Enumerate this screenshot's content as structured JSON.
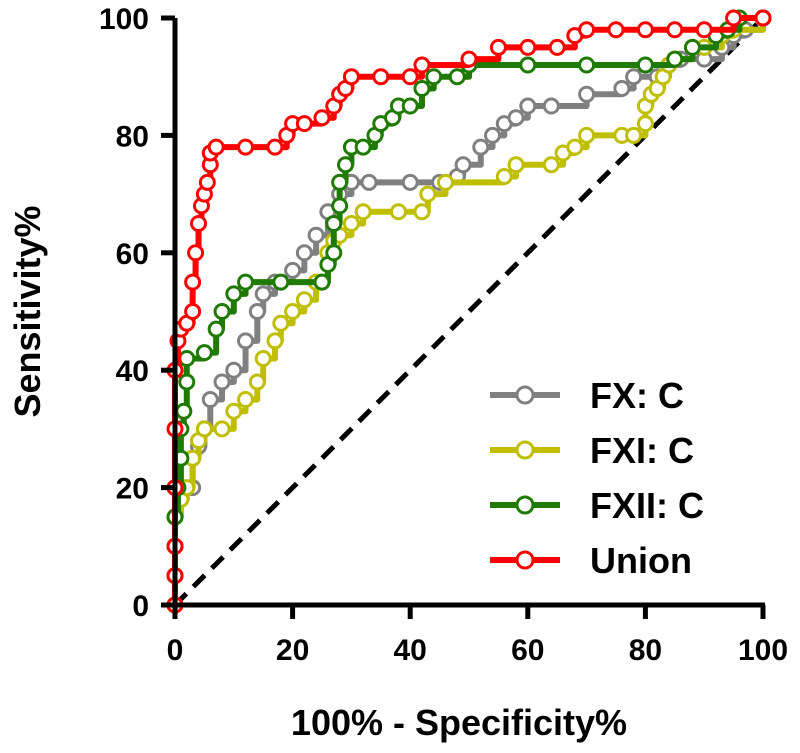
{
  "chart_data": {
    "type": "line",
    "xlabel": "100% - Specificity%",
    "ylabel": "Sensitivity%",
    "xlim": [
      0,
      100
    ],
    "ylim": [
      0,
      100
    ],
    "x_ticks": [
      "0",
      "20",
      "40",
      "60",
      "80",
      "100"
    ],
    "y_ticks": [
      "0",
      "20",
      "40",
      "60",
      "80",
      "100"
    ],
    "grid": false,
    "legend_position": "bottom-right",
    "reference_line": {
      "style": "dashed",
      "color": "#000000",
      "points": [
        [
          0,
          0
        ],
        [
          100,
          100
        ]
      ]
    },
    "series": [
      {
        "name": "FX: C",
        "color": "#808080",
        "points": [
          [
            0,
            0
          ],
          [
            0,
            5
          ],
          [
            0,
            10
          ],
          [
            0,
            15
          ],
          [
            0.5,
            20
          ],
          [
            3,
            20
          ],
          [
            3,
            25
          ],
          [
            4,
            27
          ],
          [
            5,
            30
          ],
          [
            6,
            35
          ],
          [
            8,
            38
          ],
          [
            10,
            40
          ],
          [
            12,
            45
          ],
          [
            14,
            50
          ],
          [
            15,
            53
          ],
          [
            17,
            55
          ],
          [
            20,
            57
          ],
          [
            22,
            60
          ],
          [
            24,
            63
          ],
          [
            26,
            67
          ],
          [
            28,
            70
          ],
          [
            30,
            72
          ],
          [
            33,
            72
          ],
          [
            40,
            72
          ],
          [
            45,
            72
          ],
          [
            48,
            73
          ],
          [
            49,
            75
          ],
          [
            52,
            78
          ],
          [
            54,
            80
          ],
          [
            56,
            82
          ],
          [
            58,
            83
          ],
          [
            60,
            85
          ],
          [
            64,
            85
          ],
          [
            70,
            87
          ],
          [
            76,
            88
          ],
          [
            78,
            90
          ],
          [
            82,
            90
          ],
          [
            84,
            92
          ],
          [
            86,
            93
          ],
          [
            90,
            93
          ],
          [
            93,
            95
          ],
          [
            95,
            97
          ],
          [
            97,
            98
          ],
          [
            100,
            100
          ]
        ]
      },
      {
        "name": "FXI: C",
        "color": "#BFBF00",
        "points": [
          [
            0,
            0
          ],
          [
            0,
            5
          ],
          [
            0,
            10
          ],
          [
            0,
            15
          ],
          [
            1,
            18
          ],
          [
            2,
            20
          ],
          [
            3,
            25
          ],
          [
            4,
            28
          ],
          [
            5,
            30
          ],
          [
            8,
            30
          ],
          [
            10,
            33
          ],
          [
            12,
            35
          ],
          [
            14,
            38
          ],
          [
            15,
            42
          ],
          [
            17,
            45
          ],
          [
            18,
            48
          ],
          [
            20,
            50
          ],
          [
            22,
            52
          ],
          [
            24,
            55
          ],
          [
            26,
            60
          ],
          [
            27,
            62
          ],
          [
            28,
            63
          ],
          [
            30,
            65
          ],
          [
            32,
            67
          ],
          [
            38,
            67
          ],
          [
            42,
            67
          ],
          [
            43,
            70
          ],
          [
            46,
            72
          ],
          [
            56,
            73
          ],
          [
            58,
            75
          ],
          [
            64,
            75
          ],
          [
            66,
            77
          ],
          [
            68,
            78
          ],
          [
            70,
            80
          ],
          [
            76,
            80
          ],
          [
            78,
            80
          ],
          [
            80,
            82
          ],
          [
            80,
            85
          ],
          [
            81,
            87
          ],
          [
            82,
            88
          ],
          [
            83,
            90
          ],
          [
            84,
            92
          ],
          [
            85,
            93
          ],
          [
            88,
            95
          ],
          [
            90,
            95
          ],
          [
            93,
            97
          ],
          [
            95,
            98
          ],
          [
            100,
            100
          ]
        ]
      },
      {
        "name": "FXII: C",
        "color": "#1E7A00",
        "points": [
          [
            0,
            0
          ],
          [
            0,
            5
          ],
          [
            0,
            10
          ],
          [
            0,
            15
          ],
          [
            0.5,
            20
          ],
          [
            1,
            25
          ],
          [
            1,
            30
          ],
          [
            1.5,
            33
          ],
          [
            2,
            38
          ],
          [
            2,
            42
          ],
          [
            5,
            43
          ],
          [
            7,
            47
          ],
          [
            8,
            50
          ],
          [
            10,
            53
          ],
          [
            12,
            55
          ],
          [
            18,
            55
          ],
          [
            25,
            55
          ],
          [
            26,
            58
          ],
          [
            27,
            60
          ],
          [
            27,
            65
          ],
          [
            28,
            68
          ],
          [
            28,
            72
          ],
          [
            29,
            75
          ],
          [
            30,
            78
          ],
          [
            32,
            78
          ],
          [
            34,
            80
          ],
          [
            35,
            82
          ],
          [
            37,
            83
          ],
          [
            38,
            85
          ],
          [
            40,
            85
          ],
          [
            42,
            88
          ],
          [
            44,
            90
          ],
          [
            48,
            90
          ],
          [
            50,
            92
          ],
          [
            60,
            92
          ],
          [
            70,
            92
          ],
          [
            80,
            92
          ],
          [
            85,
            93
          ],
          [
            88,
            95
          ],
          [
            92,
            97
          ],
          [
            94,
            98
          ],
          [
            96,
            100
          ],
          [
            100,
            100
          ]
        ]
      },
      {
        "name": "Union",
        "color": "#FF0000",
        "points": [
          [
            0,
            0
          ],
          [
            0,
            5
          ],
          [
            0,
            10
          ],
          [
            0,
            20
          ],
          [
            0,
            30
          ],
          [
            0,
            40
          ],
          [
            0.5,
            45
          ],
          [
            1,
            47
          ],
          [
            2,
            48
          ],
          [
            3,
            50
          ],
          [
            3,
            55
          ],
          [
            3.5,
            60
          ],
          [
            4,
            65
          ],
          [
            4.5,
            68
          ],
          [
            5,
            70
          ],
          [
            5.5,
            72
          ],
          [
            6,
            75
          ],
          [
            6,
            77
          ],
          [
            7,
            78
          ],
          [
            12,
            78
          ],
          [
            17,
            78
          ],
          [
            19,
            80
          ],
          [
            20,
            82
          ],
          [
            22,
            82
          ],
          [
            25,
            83
          ],
          [
            27,
            85
          ],
          [
            28,
            87
          ],
          [
            29,
            88
          ],
          [
            30,
            90
          ],
          [
            35,
            90
          ],
          [
            40,
            90
          ],
          [
            42,
            92
          ],
          [
            50,
            93
          ],
          [
            55,
            95
          ],
          [
            60,
            95
          ],
          [
            65,
            95
          ],
          [
            68,
            97
          ],
          [
            70,
            98
          ],
          [
            75,
            98
          ],
          [
            80,
            98
          ],
          [
            85,
            98
          ],
          [
            90,
            98
          ],
          [
            95,
            100
          ],
          [
            100,
            100
          ]
        ]
      }
    ]
  }
}
